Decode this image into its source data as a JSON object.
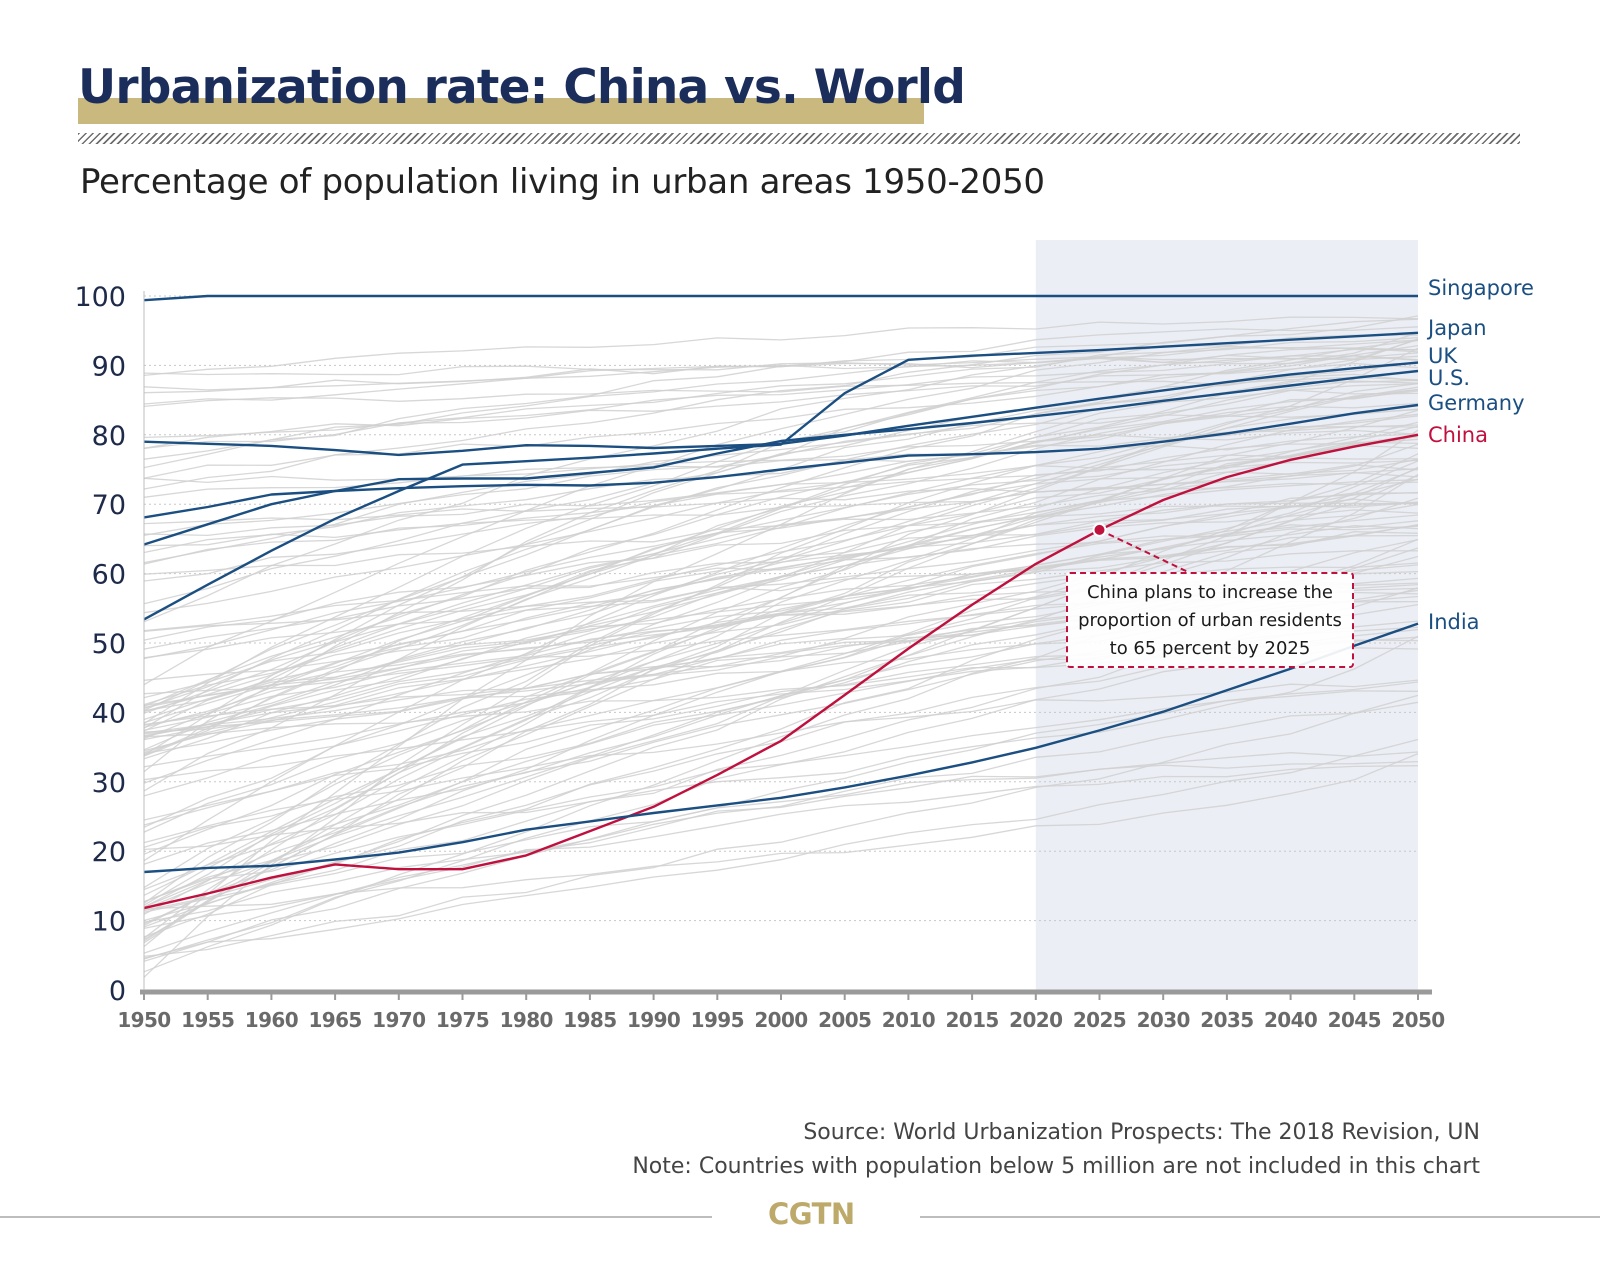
{
  "header": {
    "title": "Urbanization rate: China vs. World",
    "subtitle": "Percentage of population living in urban areas 1950-2050"
  },
  "colors": {
    "accent_gold": "#c9b97f",
    "navy": "#1b4f82",
    "china_red": "#c0103e",
    "background_lines": "#d0d0d0",
    "projection_shade": "#eceef5"
  },
  "chart_data": {
    "type": "line",
    "x": [
      1950,
      1955,
      1960,
      1965,
      1970,
      1975,
      1980,
      1985,
      1990,
      1995,
      2000,
      2005,
      2010,
      2015,
      2020,
      2025,
      2030,
      2035,
      2040,
      2045,
      2050
    ],
    "xlim": [
      1950,
      2050
    ],
    "ylim": [
      0,
      100
    ],
    "y_ticks": [
      0,
      10,
      20,
      30,
      40,
      50,
      60,
      70,
      80,
      90,
      100
    ],
    "grid": "horizontal dotted",
    "projection_shaded_from": 2020,
    "highlighted_series": [
      {
        "name": "Singapore",
        "color": "#1b4f82",
        "values": [
          99.4,
          100,
          100,
          100,
          100,
          100,
          100,
          100,
          100,
          100,
          100,
          100,
          100,
          100,
          100,
          100,
          100,
          100,
          100,
          100,
          100
        ]
      },
      {
        "name": "Japan",
        "color": "#1b4f82",
        "values": [
          53.4,
          58.4,
          63.3,
          67.9,
          71.9,
          75.7,
          76.2,
          76.7,
          77.3,
          78.0,
          78.6,
          86.0,
          90.8,
          91.4,
          91.8,
          92.2,
          92.7,
          93.2,
          93.7,
          94.2,
          94.7
        ]
      },
      {
        "name": "UK",
        "color": "#1b4f82",
        "values": [
          79.0,
          78.7,
          78.4,
          77.8,
          77.1,
          77.7,
          78.5,
          78.4,
          78.1,
          78.4,
          78.7,
          79.9,
          81.3,
          82.6,
          83.9,
          85.2,
          86.4,
          87.6,
          88.7,
          89.6,
          90.4
        ]
      },
      {
        "name": "U.S.",
        "color": "#1b4f82",
        "values": [
          64.2,
          67.1,
          70.0,
          71.9,
          73.6,
          73.7,
          73.7,
          74.5,
          75.3,
          77.3,
          79.1,
          80.0,
          80.8,
          81.7,
          82.7,
          83.7,
          84.9,
          86.0,
          87.1,
          88.2,
          89.2
        ]
      },
      {
        "name": "Germany",
        "color": "#1b4f82",
        "values": [
          68.1,
          69.6,
          71.4,
          71.9,
          72.3,
          72.6,
          72.8,
          72.7,
          73.1,
          73.9,
          75.0,
          76.0,
          77.0,
          77.2,
          77.5,
          78.0,
          79.0,
          80.2,
          81.6,
          83.1,
          84.3
        ]
      },
      {
        "name": "China",
        "color": "#c0103e",
        "values": [
          11.8,
          13.9,
          16.2,
          18.1,
          17.4,
          17.4,
          19.4,
          22.9,
          26.4,
          31.0,
          35.9,
          42.5,
          49.2,
          55.5,
          61.4,
          66.3,
          70.6,
          73.9,
          76.4,
          78.3,
          80.0
        ]
      },
      {
        "name": "India",
        "color": "#1b4f82",
        "values": [
          17.0,
          17.6,
          17.9,
          18.8,
          19.8,
          21.3,
          23.1,
          24.3,
          25.5,
          26.6,
          27.7,
          29.2,
          30.9,
          32.8,
          34.9,
          37.4,
          40.1,
          43.2,
          46.3,
          49.6,
          52.8
        ]
      }
    ],
    "annotation": {
      "point": {
        "x": 2025,
        "y": 66.3
      },
      "lines": [
        "China plans to increase the",
        "proportion of urban residents",
        "to 65 percent by 2025"
      ]
    }
  },
  "footer": {
    "source": "Source: World Urbanization Prospects: The 2018 Revision, UN",
    "note": "Note: Countries with population below 5 million are not included in this chart",
    "brand": "CGTN"
  }
}
